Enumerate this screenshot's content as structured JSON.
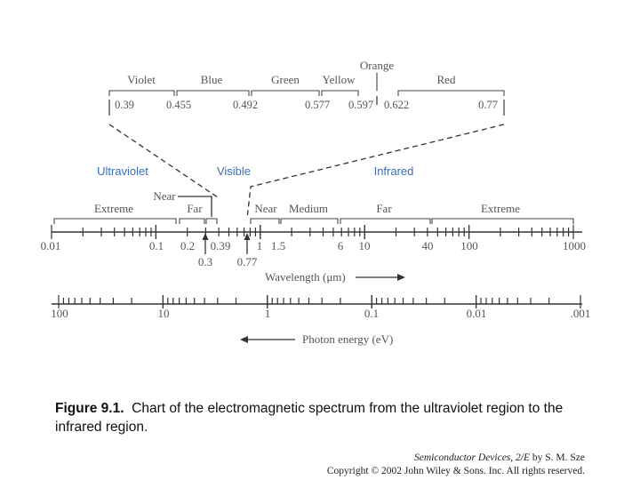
{
  "visible": {
    "colors": [
      "Violet",
      "Blue",
      "Green",
      "Yellow",
      "Orange",
      "Red"
    ],
    "boundaries": [
      "0.39",
      "0.455",
      "0.492",
      "0.577",
      "0.597",
      "0.622",
      "0.77"
    ]
  },
  "regions": {
    "ultraviolet": "Ultraviolet",
    "visible": "Visible",
    "infrared": "Infrared"
  },
  "subregions": {
    "uv_extreme": "Extreme",
    "uv_near": "Near",
    "uv_far": "Far",
    "ir_near": "Near",
    "ir_medium": "Medium",
    "ir_far": "Far",
    "ir_extreme": "Extreme"
  },
  "wavelength_axis": {
    "label": "Wavelength (μm)",
    "ticks": [
      "0.01",
      "0.1",
      "0.2",
      "0.39",
      "1",
      "1.5",
      "6",
      "10",
      "40",
      "100",
      "1000"
    ],
    "below_ticks": [
      "0.3",
      "0.77"
    ]
  },
  "energy_axis": {
    "label": "Photon energy (eV)",
    "ticks": [
      "100",
      "10",
      "1",
      "0.1",
      "0.01",
      ".001"
    ]
  },
  "caption": {
    "figure": "Figure 9.1.",
    "text": "Chart of the electromagnetic spectrum from the ultraviolet region to the infrared region."
  },
  "credit": {
    "book": "Semiconductor Devices, 2/E",
    "author": " by S. M. Sze",
    "copyright": "Copyright © 2002 John Wiley & Sons. Inc. All rights reserved."
  }
}
